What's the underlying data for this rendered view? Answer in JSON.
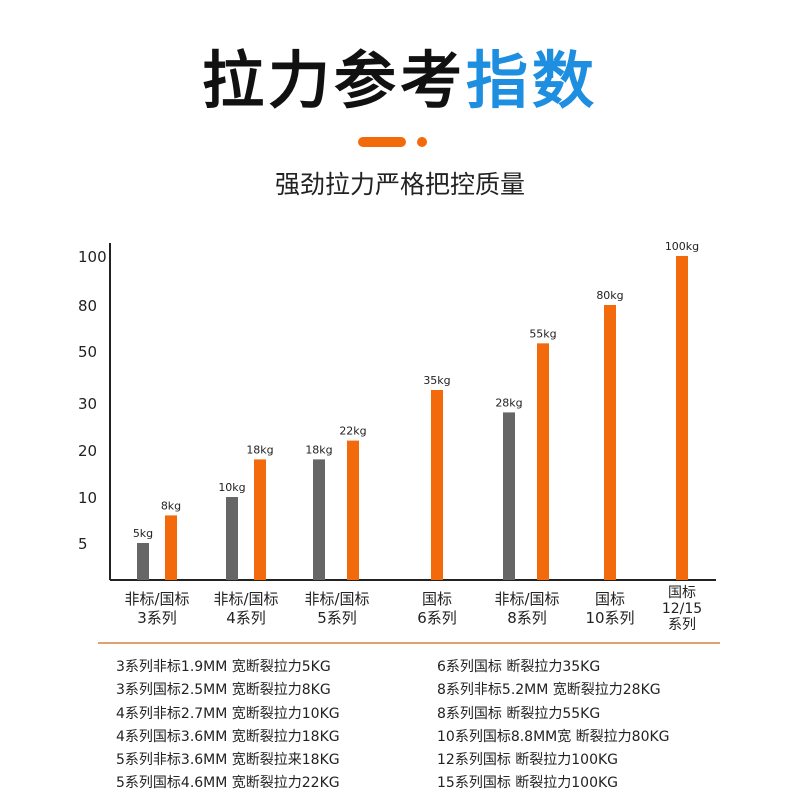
{
  "header": {
    "title_main": "拉力参考",
    "title_highlight": "指数",
    "subtitle": "强劲拉力严格把控质量"
  },
  "colors": {
    "accent": "#f26a0c",
    "highlight": "#1e8fe0",
    "gray_bar": "#666666"
  },
  "chart_data": {
    "type": "bar",
    "categories": [
      [
        "非标/国标",
        "3系列"
      ],
      [
        "非标/国标",
        "4系列"
      ],
      [
        "非标/国标",
        "5系列"
      ],
      [
        "国标",
        "6系列"
      ],
      [
        "非标/国标",
        "8系列"
      ],
      [
        "国标",
        "10系列"
      ],
      [
        "国标",
        "12/15",
        "系列"
      ]
    ],
    "yticks": [
      5,
      10,
      20,
      30,
      50,
      80,
      100
    ],
    "y_scale": "non-uniform (ticks evenly spaced)",
    "grid": false,
    "series": [
      {
        "color": "#666666",
        "values": [
          5,
          10,
          18,
          null,
          28,
          null,
          null
        ],
        "labels": [
          "5kg",
          "10kg",
          "18kg",
          null,
          "28kg",
          null,
          null
        ]
      },
      {
        "color": "#f26a0c",
        "values": [
          8,
          18,
          22,
          35,
          55,
          80,
          100
        ],
        "labels": [
          "8kg",
          "18kg",
          "22kg",
          "35kg",
          "55kg",
          "80kg",
          "100kg"
        ]
      }
    ]
  },
  "notes": {
    "left": [
      "3系列非标1.9MM 宽断裂拉力5KG",
      "3系列国标2.5MM 宽断裂拉力8KG",
      "4系列非标2.7MM 宽断裂拉力10KG",
      "4系列国标3.6MM 宽断裂拉力18KG",
      "5系列非标3.6MM 宽断裂拉来18KG",
      "5系列国标4.6MM 宽断裂拉力22KG"
    ],
    "right": [
      "6系列国标 断裂拉力35KG",
      "8系列非标5.2MM 宽断裂拉力28KG",
      "8系列国标 断裂拉力55KG",
      "10系列国标8.8MM宽 断裂拉力80KG",
      "12系列国标 断裂拉力100KG",
      "15系列国标 断裂拉力100KG"
    ]
  }
}
